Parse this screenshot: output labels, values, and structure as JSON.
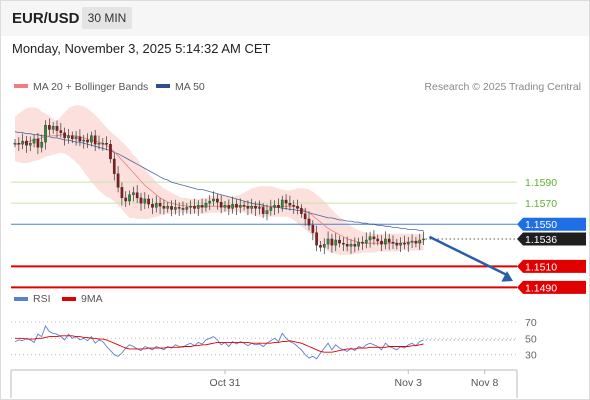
{
  "header": {
    "symbol": "EUR/USD",
    "timeframe": "30 MIN",
    "datetime": "Monday, November 3, 2025 5:14:32 AM CET"
  },
  "legend": {
    "ma20_label": "MA 20 + Bollinger Bands",
    "ma50_label": "MA 50",
    "copyright": "Research © 2025 Trading Central",
    "ma20_color": "#f08080",
    "ma50_color": "#2e4e8f"
  },
  "chart_data": [
    {
      "type": "candlestick",
      "price_range": [
        1.1478,
        1.1668
      ],
      "closes": [
        1.1627,
        1.1626,
        1.1629,
        1.1625,
        1.1627,
        1.1631,
        1.1623,
        1.1628,
        1.1644,
        1.164,
        1.1643,
        1.1639,
        1.1637,
        1.1632,
        1.1634,
        1.1631,
        1.1633,
        1.1629,
        1.163,
        1.1628,
        1.1634,
        1.1626,
        1.1627,
        1.1627,
        1.1626,
        1.1612,
        1.1598,
        1.1585,
        1.1575,
        1.1572,
        1.1578,
        1.158,
        1.1575,
        1.157,
        1.1574,
        1.1569,
        1.1566,
        1.157,
        1.1567,
        1.1565,
        1.1567,
        1.1564,
        1.1566,
        1.1565,
        1.1564,
        1.1566,
        1.1567,
        1.1565,
        1.1568,
        1.1566,
        1.157,
        1.1572,
        1.1574,
        1.1571,
        1.1566,
        1.1568,
        1.1565,
        1.1569,
        1.1566,
        1.1568,
        1.1567,
        1.1565,
        1.1567,
        1.1565,
        1.1566,
        1.156,
        1.1563,
        1.1566,
        1.1568,
        1.1566,
        1.1573,
        1.157,
        1.1568,
        1.1567,
        1.1565,
        1.156,
        1.1555,
        1.1549,
        1.1542,
        1.153,
        1.1528,
        1.1531,
        1.1536,
        1.153,
        1.1535,
        1.1532,
        1.1531,
        1.1529,
        1.1531,
        1.1529,
        1.1533,
        1.1532,
        1.1535,
        1.1538,
        1.1536,
        1.1534,
        1.1531,
        1.1536,
        1.1533,
        1.1532,
        1.153,
        1.1532,
        1.1531,
        1.1533,
        1.1534,
        1.1532,
        1.1535,
        1.1536
      ],
      "ma20": [
        1.1626,
        1.1626,
        1.1627,
        1.1628,
        1.1629,
        1.163,
        1.1631,
        1.1632,
        1.1633,
        1.1634,
        1.1634,
        1.1634,
        1.1635,
        1.1635,
        1.1634,
        1.1634,
        1.1634,
        1.1633,
        1.1632,
        1.1631,
        1.163,
        1.1629,
        1.1628,
        1.1627,
        1.1625,
        1.1622,
        1.1619,
        1.1615,
        1.1611,
        1.1607,
        1.1603,
        1.1599,
        1.1595,
        1.1591,
        1.1587,
        1.1584,
        1.1581,
        1.1578,
        1.1575,
        1.1573,
        1.1571,
        1.157,
        1.1569,
        1.1568,
        1.1568,
        1.1567,
        1.1567,
        1.1567,
        1.1567,
        1.1567,
        1.1567,
        1.1567,
        1.1567,
        1.1567,
        1.1567,
        1.1567,
        1.1567,
        1.1567,
        1.1567,
        1.1567,
        1.1567,
        1.1567,
        1.1567,
        1.1567,
        1.1567,
        1.1567,
        1.1567,
        1.1567,
        1.1567,
        1.1567,
        1.1567,
        1.1567,
        1.1567,
        1.1567,
        1.1566,
        1.1565,
        1.1563,
        1.1561,
        1.1558,
        1.1555,
        1.1552,
        1.1549,
        1.1546,
        1.1544,
        1.1542,
        1.154,
        1.1538,
        1.1536,
        1.1535,
        1.1534,
        1.1533,
        1.1532,
        1.1532,
        1.1532,
        1.1532,
        1.1532,
        1.1532,
        1.1532,
        1.1532,
        1.1532,
        1.1532,
        1.1532,
        1.1533,
        1.1533,
        1.1533,
        1.1533,
        1.1533,
        1.1533
      ],
      "ma50": [
        1.1638,
        1.1637,
        1.1637,
        1.1636,
        1.1636,
        1.1635,
        1.1635,
        1.1634,
        1.1634,
        1.1633,
        1.1632,
        1.1632,
        1.1631,
        1.163,
        1.163,
        1.1629,
        1.1628,
        1.1628,
        1.1627,
        1.1626,
        1.1625,
        1.1624,
        1.1623,
        1.1622,
        1.1621,
        1.162,
        1.1618,
        1.1617,
        1.1615,
        1.1613,
        1.1611,
        1.1609,
        1.1607,
        1.1605,
        1.1603,
        1.1601,
        1.1599,
        1.1597,
        1.1595,
        1.1593,
        1.1592,
        1.159,
        1.1589,
        1.1588,
        1.1587,
        1.1586,
        1.1585,
        1.1584,
        1.1583,
        1.1583,
        1.1582,
        1.1581,
        1.158,
        1.1579,
        1.1578,
        1.1577,
        1.1576,
        1.1575,
        1.1574,
        1.1573,
        1.1572,
        1.1571,
        1.157,
        1.1569,
        1.1569,
        1.1568,
        1.1567,
        1.1567,
        1.1566,
        1.1566,
        1.1565,
        1.1565,
        1.1564,
        1.1564,
        1.1563,
        1.1563,
        1.1562,
        1.1561,
        1.156,
        1.1559,
        1.1558,
        1.1557,
        1.1556,
        1.1556,
        1.1555,
        1.1554,
        1.1554,
        1.1553,
        1.1553,
        1.1552,
        1.1552,
        1.1551,
        1.1551,
        1.155,
        1.155,
        1.1549,
        1.1549,
        1.1548,
        1.1548,
        1.1547,
        1.1547,
        1.1546,
        1.1546,
        1.1545,
        1.1545,
        1.1545,
        1.1544,
        1.1544
      ],
      "bb_upper": [
        1.1652,
        1.1655,
        1.1658,
        1.166,
        1.1661,
        1.1661,
        1.166,
        1.1657,
        1.1655,
        1.1653,
        1.165,
        1.1648,
        1.1652,
        1.1656,
        1.166,
        1.1662,
        1.1663,
        1.1663,
        1.1662,
        1.166,
        1.1657,
        1.1654,
        1.165,
        1.1646,
        1.1642,
        1.1638,
        1.1635,
        1.1632,
        1.1628,
        1.1625,
        1.1621,
        1.1616,
        1.1612,
        1.1607,
        1.1603,
        1.1598,
        1.1594,
        1.159,
        1.1587,
        1.1584,
        1.1582,
        1.158,
        1.1578,
        1.1576,
        1.1575,
        1.1575,
        1.1574,
        1.1574,
        1.1574,
        1.1574,
        1.1575,
        1.1576,
        1.1577,
        1.1578,
        1.1578,
        1.1577,
        1.1576,
        1.1576,
        1.1577,
        1.1578,
        1.158,
        1.1582,
        1.1584,
        1.1585,
        1.1586,
        1.1586,
        1.1586,
        1.1586,
        1.1585,
        1.1584,
        1.1583,
        1.1582,
        1.1582,
        1.1583,
        1.1584,
        1.1584,
        1.1584,
        1.1583,
        1.1581,
        1.1578,
        1.1575,
        1.1572,
        1.1568,
        1.1564,
        1.156,
        1.1557,
        1.1554,
        1.1551,
        1.1548,
        1.1546,
        1.1544,
        1.1543,
        1.1542,
        1.1541,
        1.1541,
        1.1541,
        1.1541,
        1.1541,
        1.1541,
        1.1541,
        1.1541,
        1.1541,
        1.1541,
        1.1541,
        1.1541,
        1.1541,
        1.1541,
        1.1541
      ],
      "bb_lower": [
        1.161,
        1.1609,
        1.1608,
        1.1608,
        1.1609,
        1.161,
        1.1611,
        1.1612,
        1.1614,
        1.1615,
        1.1616,
        1.1617,
        1.1618,
        1.1617,
        1.1615,
        1.1612,
        1.1609,
        1.1605,
        1.16,
        1.1595,
        1.159,
        1.1586,
        1.1582,
        1.1579,
        1.1576,
        1.1574,
        1.1572,
        1.1568,
        1.1564,
        1.156,
        1.1556,
        1.1556,
        1.1555,
        1.1555,
        1.1555,
        1.1555,
        1.1556,
        1.1557,
        1.1558,
        1.1559,
        1.156,
        1.156,
        1.156,
        1.1561,
        1.1561,
        1.1561,
        1.156,
        1.156,
        1.156,
        1.156,
        1.156,
        1.1561,
        1.1561,
        1.1561,
        1.1561,
        1.1562,
        1.1562,
        1.1562,
        1.1562,
        1.1562,
        1.1561,
        1.156,
        1.1559,
        1.1558,
        1.1557,
        1.1557,
        1.1557,
        1.1557,
        1.1557,
        1.1557,
        1.1557,
        1.1557,
        1.1556,
        1.1554,
        1.1551,
        1.1548,
        1.1545,
        1.1542,
        1.1539,
        1.1535,
        1.1531,
        1.1527,
        1.1524,
        1.1523,
        1.1522,
        1.1521,
        1.1521,
        1.1521,
        1.1521,
        1.1522,
        1.1522,
        1.1523,
        1.1523,
        1.1523,
        1.1523,
        1.1524,
        1.1524,
        1.1524,
        1.1524,
        1.1524,
        1.1524,
        1.1525,
        1.1525,
        1.1525,
        1.1525,
        1.1525,
        1.1525,
        1.1525
      ],
      "levels": [
        {
          "value": 1.159,
          "label": "1.1590",
          "kind": "resistance"
        },
        {
          "value": 1.157,
          "label": "1.1570",
          "kind": "resistance"
        },
        {
          "value": 1.155,
          "label": "1.1550",
          "kind": "pivot"
        },
        {
          "value": 1.151,
          "label": "1.1510",
          "kind": "target"
        },
        {
          "value": 1.149,
          "label": "1.1490",
          "kind": "target"
        }
      ],
      "last_price": {
        "value": 1.1536,
        "label": "1.1536"
      },
      "forecast": {
        "from": 1.1538,
        "to": 1.1496,
        "direction": "down"
      },
      "x_ticks": [
        {
          "index": 55,
          "label": "Oct 31"
        },
        {
          "index": 103,
          "label": "Nov 3"
        },
        {
          "index": 123,
          "label": "Nov 8"
        }
      ],
      "x_span": 132,
      "colors": {
        "up": "#2e8b3a",
        "down": "#8b1a1a",
        "resistance": "#c9e4a8",
        "pivot": "#4a7fd8",
        "target": "#e00000"
      }
    },
    {
      "type": "line",
      "title": "RSI",
      "ylim": [
        15,
        82
      ],
      "y_ticks": [
        {
          "value": 70,
          "label": "70"
        },
        {
          "value": 50,
          "label": "50"
        },
        {
          "value": 30,
          "label": "30"
        }
      ],
      "series": [
        {
          "name": "RSI",
          "color": "#5b7fd4",
          "values": [
            46,
            48,
            47,
            50,
            48,
            45,
            55,
            52,
            65,
            58,
            56,
            55,
            52,
            48,
            55,
            50,
            52,
            48,
            50,
            47,
            52,
            44,
            48,
            46,
            40,
            35,
            30,
            28,
            32,
            38,
            42,
            40,
            37,
            35,
            40,
            38,
            36,
            40,
            38,
            36,
            40,
            38,
            42,
            40,
            39,
            42,
            44,
            41,
            45,
            43,
            48,
            50,
            52,
            48,
            42,
            45,
            40,
            46,
            43,
            46,
            44,
            41,
            44,
            42,
            43,
            40,
            44,
            47,
            50,
            46,
            56,
            50,
            46,
            44,
            40,
            36,
            30,
            26,
            28,
            25,
            32,
            38,
            44,
            36,
            42,
            38,
            36,
            34,
            38,
            35,
            40,
            38,
            42,
            44,
            42,
            40,
            36,
            44,
            40,
            38,
            36,
            40,
            38,
            42,
            44,
            41,
            46,
            48
          ]
        },
        {
          "name": "9MA",
          "color": "#e00000",
          "values": [
            50,
            50,
            50,
            49,
            49,
            49,
            50,
            50,
            51,
            52,
            52,
            52,
            53,
            53,
            53,
            53,
            52,
            52,
            51,
            51,
            50,
            50,
            49,
            49,
            48,
            46,
            44,
            42,
            40,
            38,
            37,
            37,
            37,
            37,
            37,
            38,
            38,
            38,
            38,
            38,
            39,
            39,
            39,
            39,
            40,
            40,
            40,
            41,
            41,
            42,
            42,
            43,
            44,
            45,
            45,
            45,
            45,
            45,
            45,
            45,
            45,
            45,
            44,
            44,
            44,
            44,
            44,
            44,
            45,
            45,
            46,
            46,
            47,
            46,
            45,
            44,
            42,
            40,
            38,
            36,
            34,
            33,
            33,
            33,
            34,
            35,
            36,
            37,
            37,
            37,
            38,
            38,
            38,
            39,
            39,
            39,
            39,
            39,
            40,
            40,
            40,
            40,
            40,
            40,
            41,
            41,
            42,
            43
          ]
        }
      ]
    }
  ]
}
